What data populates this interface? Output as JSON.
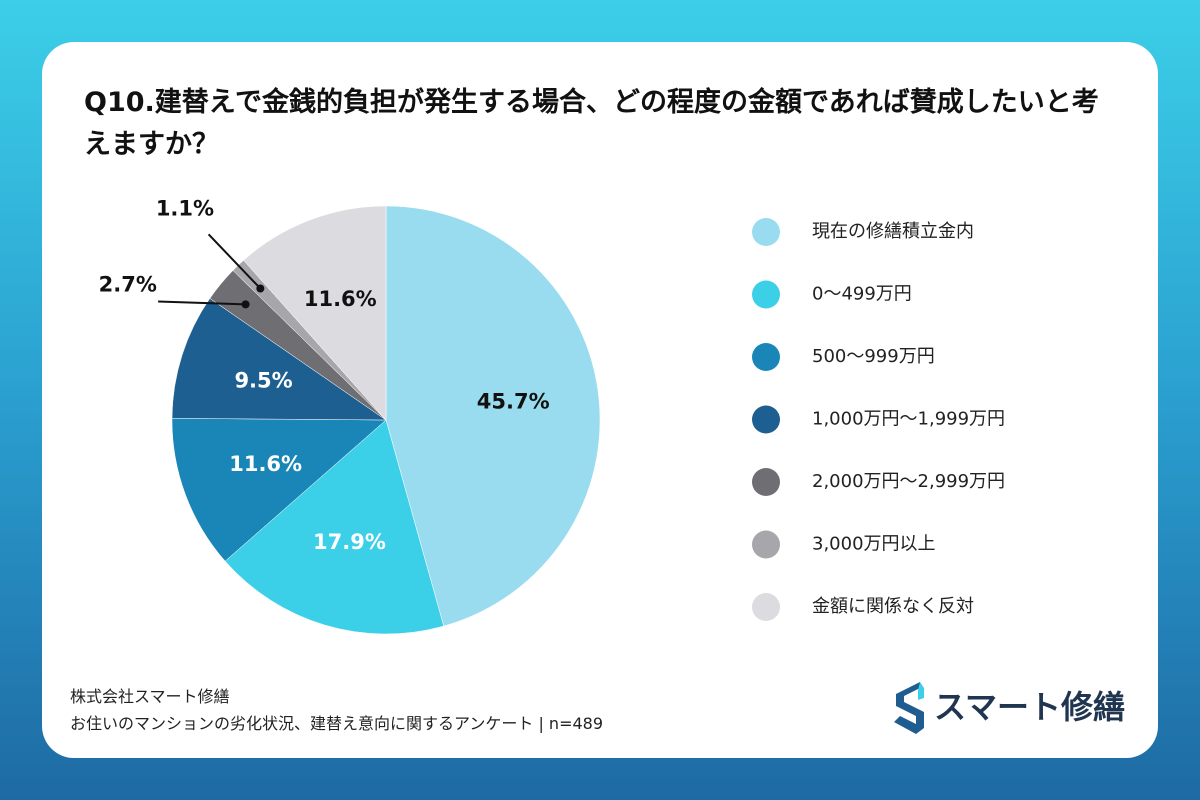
{
  "chart_data": {
    "type": "pie",
    "title": "Q10.建替えで金銭的負担が発生する場合、どの程度の金額であれば賛成したいと考えますか？",
    "categories": [
      "現在の修繕積立金内",
      "0〜499万円",
      "500〜999万円",
      "1,000万円〜1,999万円",
      "2,000万円〜2,999万円",
      "3,000万円以上",
      "金額に関係なく反対"
    ],
    "values": [
      45.7,
      17.9,
      11.6,
      9.5,
      2.7,
      1.1,
      11.6
    ],
    "value_labels": [
      "45.7%",
      "17.9%",
      "11.6%",
      "9.5%",
      "2.7%",
      "1.1%",
      "11.6%"
    ],
    "colors": [
      "#9adcef",
      "#3ccfe8",
      "#1a86b8",
      "#1e5f91",
      "#6e6e73",
      "#a7a7ab",
      "#dcdce0"
    ],
    "legend": "right"
  },
  "footer": {
    "company": "株式会社スマート修繕",
    "survey": "お住いのマンションの劣化状況、建替え意向に関するアンケート | n=489"
  },
  "logo": {
    "text": "スマート修繕"
  }
}
